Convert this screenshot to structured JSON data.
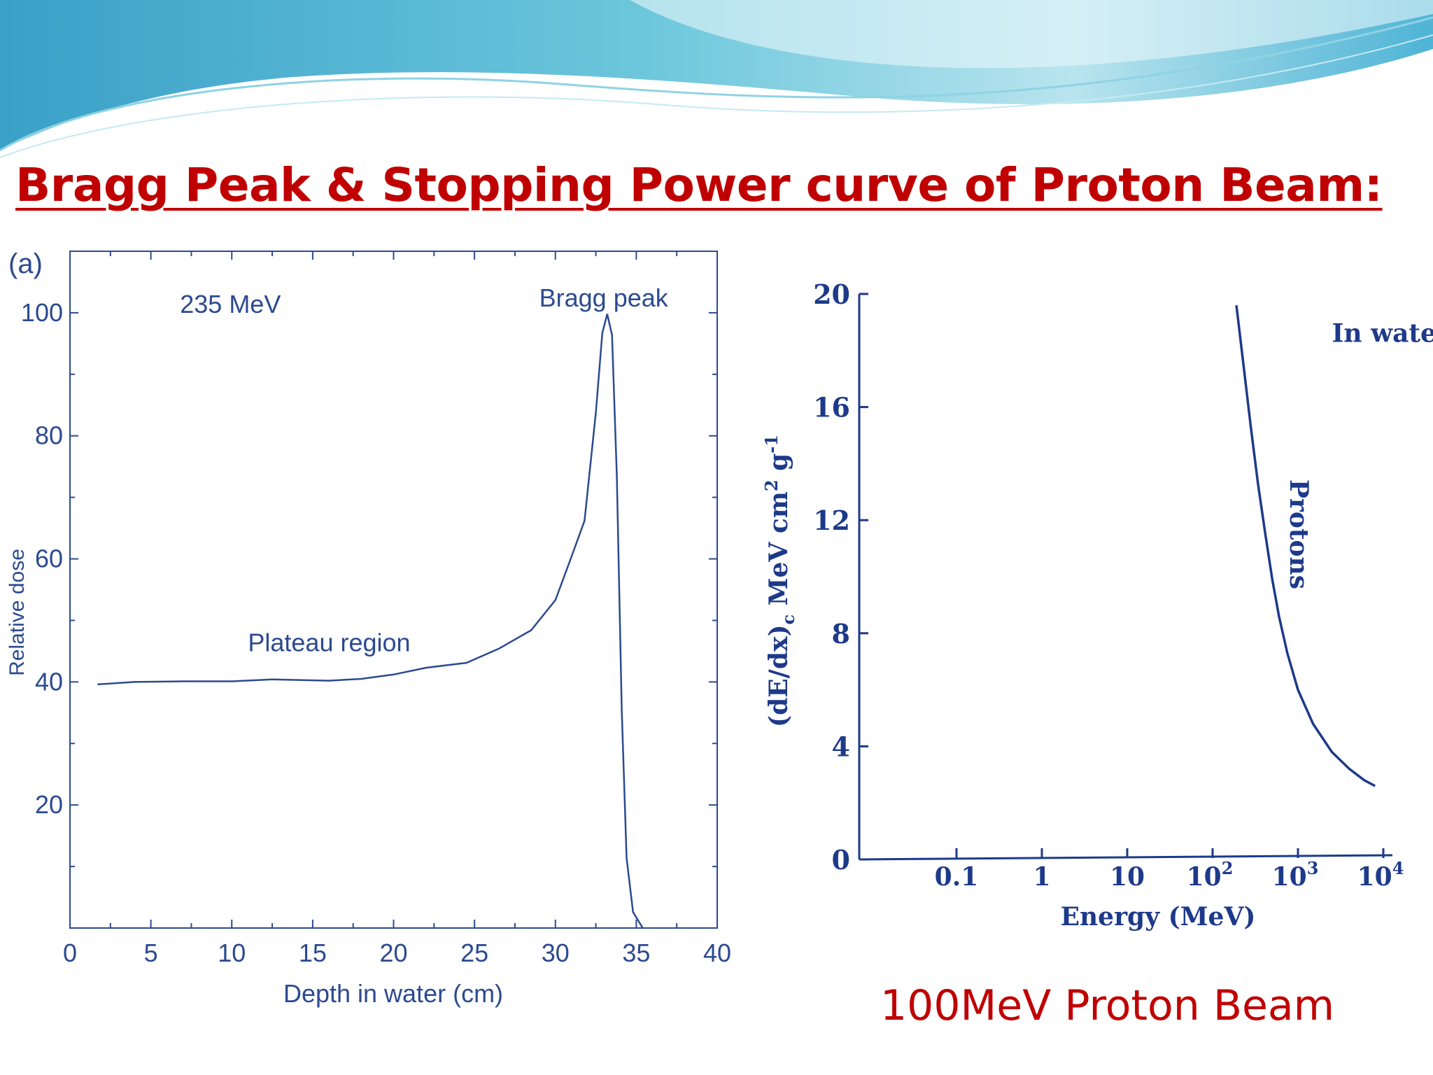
{
  "slide": {
    "title": "Bragg Peak  & Stopping Power curve of Proton Beam:",
    "caption": "100MeV Proton Beam"
  },
  "colors": {
    "title": "#c00000",
    "chart_ink": "#2c4a90",
    "chart_b_ink": "#1d3a8a",
    "wave_light": "#b9e4ee",
    "wave_mid": "#6cc7dc",
    "wave_dark": "#3aa0c8"
  },
  "chart_data": [
    {
      "type": "line",
      "panel_label": "(a)",
      "xlabel": "Depth in water (cm)",
      "ylabel": "Relative dose",
      "xlim": [
        0,
        40
      ],
      "ylim": [
        0,
        110
      ],
      "x_ticks": [
        0,
        5,
        10,
        15,
        20,
        25,
        30,
        35,
        40
      ],
      "y_ticks": [
        20,
        40,
        60,
        80,
        100
      ],
      "annotations": [
        {
          "text": "235 MeV",
          "x": 6.8,
          "y": 100
        },
        {
          "text": "Bragg peak",
          "x": 29,
          "y": 101
        },
        {
          "text": "Plateau region",
          "x": 11,
          "y": 45
        }
      ],
      "series": [
        {
          "x": [
            1.7,
            4,
            7,
            10,
            12.5,
            16,
            18,
            20,
            22,
            24.5,
            26.5,
            28.5,
            30,
            31,
            31.8,
            32.5,
            32.9,
            33.2,
            33.5,
            33.8,
            34.1,
            34.4,
            34.8,
            35.4
          ],
          "values": [
            39.6,
            40,
            40.1,
            40.1,
            40.4,
            40.2,
            40.5,
            41.2,
            42.3,
            43.1,
            45.4,
            48.4,
            53.3,
            60.4,
            66.2,
            83.8,
            96.7,
            99.8,
            96.4,
            73.3,
            35.4,
            11.4,
            2.6,
            0
          ]
        }
      ]
    },
    {
      "type": "line",
      "xlabel": "Energy (MeV)",
      "ylabel": "(dE/dx)c MeV cm² g-1",
      "x_scale": "log",
      "xlim": [
        0.01,
        10000
      ],
      "ylim": [
        0,
        20
      ],
      "x_ticks": [
        {
          "value": 0.1,
          "label": "0.1"
        },
        {
          "value": 1,
          "label": "1"
        },
        {
          "value": 10,
          "label": "10"
        },
        {
          "value": 100,
          "base": "10",
          "exp": "2"
        },
        {
          "value": 1000,
          "base": "10",
          "exp": "3"
        },
        {
          "value": 10000,
          "base": "10",
          "exp": "4"
        }
      ],
      "y_ticks": [
        0,
        4,
        8,
        12,
        16,
        20
      ],
      "annotations": [
        {
          "text": "In water",
          "x": 2500,
          "y": 18.3
        },
        {
          "text": "Protons",
          "x": 700,
          "y": 11.5
        }
      ],
      "series": [
        {
          "name": "Protons",
          "x": [
            190,
            230,
            280,
            340,
            410,
            500,
            600,
            750,
            1000,
            1500,
            2500,
            4000,
            6000,
            8000
          ],
          "values": [
            19.6,
            17.5,
            15.3,
            13.3,
            11.6,
            9.9,
            8.6,
            7.3,
            6.0,
            4.8,
            3.8,
            3.2,
            2.8,
            2.6
          ]
        }
      ]
    }
  ]
}
